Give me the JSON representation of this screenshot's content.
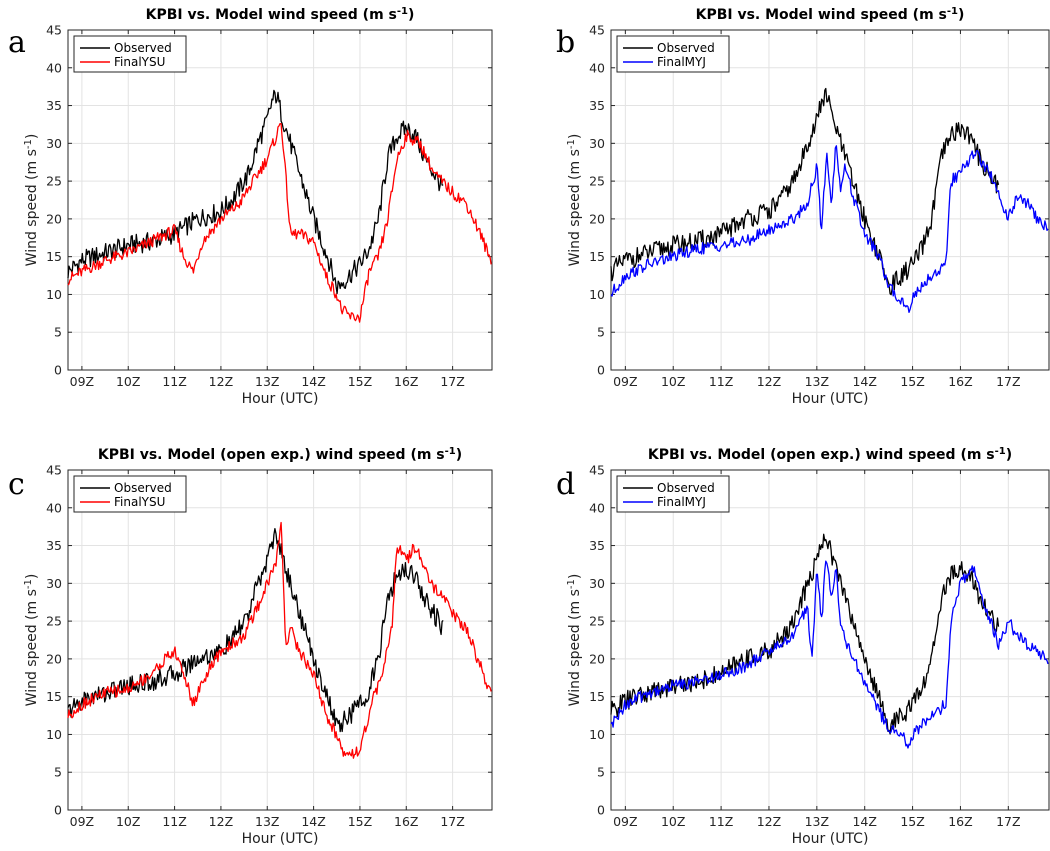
{
  "chart_data": [
    {
      "type": "line",
      "panel_label": "a",
      "title": "KPBI vs. Model wind speed (m s",
      "title_superscript": "-1",
      "title_suffix": ")",
      "xlabel": "Hour (UTC)",
      "ylabel": "Wind speed (m s",
      "ylabel_superscript": "-1",
      "ylabel_suffix": ")",
      "x_tick_labels": [
        "09Z",
        "10Z",
        "11Z",
        "12Z",
        "13Z",
        "14Z",
        "15Z",
        "16Z",
        "17Z"
      ],
      "x_tick_hours": [
        9,
        10,
        11,
        12,
        13,
        14,
        15,
        16,
        17
      ],
      "xlim": [
        8.7,
        17.85
      ],
      "ylim": [
        0,
        45
      ],
      "y_ticks": [
        0,
        5,
        10,
        15,
        20,
        25,
        30,
        35,
        40,
        45
      ],
      "grid": true,
      "legend_position": "top-left",
      "series": [
        {
          "name": "Observed",
          "color": "#000000",
          "x": [
            8.7,
            9.0,
            9.5,
            10.0,
            10.5,
            11.0,
            11.5,
            12.0,
            12.3,
            12.6,
            12.8,
            13.0,
            13.1,
            13.2,
            13.3,
            13.5,
            13.7,
            14.0,
            14.3,
            14.5,
            14.7,
            15.0,
            15.2,
            15.4,
            15.6,
            15.8,
            16.0,
            16.2,
            16.4,
            16.6,
            16.8
          ],
          "y": [
            13,
            14.5,
            15.5,
            16.5,
            17,
            18,
            20,
            21,
            23,
            26,
            30,
            33,
            35.5,
            36.5,
            34,
            30,
            26,
            20,
            15,
            11,
            12,
            14,
            16,
            20,
            28,
            31,
            32,
            31,
            28,
            26,
            24
          ]
        },
        {
          "name": "FinalYSU",
          "color": "#ff0000",
          "x": [
            8.7,
            9.0,
            9.5,
            10.0,
            10.5,
            11.0,
            11.2,
            11.4,
            11.6,
            12.0,
            12.4,
            12.8,
            13.0,
            13.2,
            13.3,
            13.5,
            13.7,
            14.0,
            14.3,
            14.5,
            14.6,
            14.8,
            15.0,
            15.2,
            15.4,
            15.6,
            15.8,
            16.0,
            16.3,
            16.6,
            17.0,
            17.3,
            17.6,
            17.85
          ],
          "y": [
            12,
            13,
            14.5,
            15.5,
            17,
            18.5,
            15,
            13,
            17,
            20,
            22,
            26,
            28,
            31,
            33,
            18,
            18,
            17,
            12,
            10,
            8,
            7,
            7,
            13,
            15,
            20,
            28,
            31,
            30,
            26,
            23.5,
            22,
            18,
            14
          ]
        }
      ]
    },
    {
      "type": "line",
      "panel_label": "b",
      "title": "KPBI vs. Model wind speed (m s",
      "title_superscript": "-1",
      "title_suffix": ")",
      "xlabel": "Hour (UTC)",
      "ylabel": "Wind speed (m s",
      "ylabel_superscript": "-1",
      "ylabel_suffix": ")",
      "x_tick_labels": [
        "09Z",
        "10Z",
        "11Z",
        "12Z",
        "13Z",
        "14Z",
        "15Z",
        "16Z",
        "17Z"
      ],
      "x_tick_hours": [
        9,
        10,
        11,
        12,
        13,
        14,
        15,
        16,
        17
      ],
      "xlim": [
        8.7,
        17.85
      ],
      "ylim": [
        0,
        45
      ],
      "y_ticks": [
        0,
        5,
        10,
        15,
        20,
        25,
        30,
        35,
        40,
        45
      ],
      "grid": true,
      "legend_position": "top-left",
      "series": [
        {
          "name": "Observed",
          "color": "#000000",
          "x": [
            8.7,
            9.0,
            9.5,
            10.0,
            10.5,
            11.0,
            11.5,
            12.0,
            12.3,
            12.6,
            12.8,
            13.0,
            13.1,
            13.2,
            13.3,
            13.5,
            13.7,
            14.0,
            14.3,
            14.5,
            14.7,
            15.0,
            15.2,
            15.4,
            15.6,
            15.8,
            16.0,
            16.2,
            16.4,
            16.6,
            16.8
          ],
          "y": [
            13,
            14.5,
            15.5,
            16.5,
            17,
            18,
            20,
            21,
            23,
            26,
            30,
            33,
            35.5,
            36.5,
            34,
            30,
            26,
            20,
            15,
            11,
            12,
            14,
            16,
            20,
            28,
            31,
            32,
            31,
            28,
            26,
            24
          ]
        },
        {
          "name": "FinalMYJ",
          "color": "#0000ff",
          "x": [
            8.7,
            9.0,
            9.5,
            10.0,
            10.5,
            11.0,
            11.5,
            12.0,
            12.5,
            12.8,
            13.0,
            13.1,
            13.2,
            13.3,
            13.4,
            13.5,
            13.6,
            13.8,
            14.0,
            14.3,
            14.5,
            14.8,
            14.9,
            15.0,
            15.3,
            15.5,
            15.7,
            15.8,
            16.0,
            16.3,
            16.5,
            16.7,
            17.0,
            17.2,
            17.4,
            17.6,
            17.85
          ],
          "y": [
            10,
            12.5,
            14,
            15,
            16,
            16.5,
            17,
            18.5,
            20,
            22,
            27,
            18,
            29,
            22,
            30,
            24,
            27,
            22,
            18,
            15,
            11,
            9,
            8,
            9.5,
            12,
            13,
            14,
            25,
            26,
            29,
            27,
            25,
            20,
            23,
            22,
            20,
            18.5
          ]
        }
      ]
    },
    {
      "type": "line",
      "panel_label": "c",
      "title": "KPBI vs. Model (open exp.) wind speed (m s",
      "title_superscript": "-1",
      "title_suffix": ")",
      "xlabel": "Hour (UTC)",
      "ylabel": "Wind speed (m s",
      "ylabel_superscript": "-1",
      "ylabel_suffix": ")",
      "x_tick_labels": [
        "09Z",
        "10Z",
        "11Z",
        "12Z",
        "13Z",
        "14Z",
        "15Z",
        "16Z",
        "17Z"
      ],
      "x_tick_hours": [
        9,
        10,
        11,
        12,
        13,
        14,
        15,
        16,
        17
      ],
      "xlim": [
        8.7,
        17.85
      ],
      "ylim": [
        0,
        45
      ],
      "y_ticks": [
        0,
        5,
        10,
        15,
        20,
        25,
        30,
        35,
        40,
        45
      ],
      "grid": true,
      "legend_position": "top-left",
      "series": [
        {
          "name": "Observed",
          "color": "#000000",
          "x": [
            8.7,
            9.0,
            9.5,
            10.0,
            10.5,
            11.0,
            11.5,
            12.0,
            12.3,
            12.6,
            12.8,
            13.0,
            13.1,
            13.2,
            13.3,
            13.5,
            13.7,
            14.0,
            14.3,
            14.5,
            14.7,
            15.0,
            15.2,
            15.4,
            15.6,
            15.8,
            16.0,
            16.2,
            16.4,
            16.6,
            16.8
          ],
          "y": [
            13,
            14.5,
            15.5,
            16.5,
            17,
            18,
            20,
            21,
            23,
            26,
            30,
            33,
            35.5,
            36.5,
            34,
            30,
            26,
            20,
            15,
            11,
            12,
            14,
            16,
            20,
            28,
            31,
            32,
            31,
            28,
            26,
            24
          ]
        },
        {
          "name": "FinalYSU",
          "color": "#ff0000",
          "x": [
            8.7,
            9.0,
            9.5,
            10.0,
            10.5,
            10.8,
            11.0,
            11.2,
            11.4,
            11.6,
            12.0,
            12.5,
            12.8,
            13.0,
            13.2,
            13.3,
            13.4,
            13.5,
            13.7,
            14.0,
            14.3,
            14.5,
            14.6,
            14.8,
            15.0,
            15.3,
            15.5,
            15.7,
            15.8,
            16.0,
            16.2,
            16.5,
            16.8,
            17.0,
            17.3,
            17.6,
            17.85
          ],
          "y": [
            12.5,
            14,
            15.5,
            16,
            18,
            20,
            21,
            18,
            14,
            17,
            21,
            23,
            27,
            30,
            33,
            38,
            22,
            24,
            21,
            18,
            12,
            10,
            8,
            7.5,
            8,
            15,
            18,
            25,
            35,
            33,
            35,
            30,
            28,
            26,
            24,
            19,
            15
          ]
        }
      ]
    },
    {
      "type": "line",
      "panel_label": "d",
      "title": "KPBI vs. Model (open exp.) wind speed (m s",
      "title_superscript": "-1",
      "title_suffix": ")",
      "xlabel": "Hour (UTC)",
      "ylabel": "Wind speed (m s",
      "ylabel_superscript": "-1",
      "ylabel_suffix": ")",
      "x_tick_labels": [
        "09Z",
        "10Z",
        "11Z",
        "12Z",
        "13Z",
        "14Z",
        "15Z",
        "16Z",
        "17Z"
      ],
      "x_tick_hours": [
        9,
        10,
        11,
        12,
        13,
        14,
        15,
        16,
        17
      ],
      "xlim": [
        8.7,
        17.85
      ],
      "ylim": [
        0,
        45
      ],
      "y_ticks": [
        0,
        5,
        10,
        15,
        20,
        25,
        30,
        35,
        40,
        45
      ],
      "grid": true,
      "legend_position": "top-left",
      "series": [
        {
          "name": "Observed",
          "color": "#000000",
          "x": [
            8.7,
            9.0,
            9.5,
            10.0,
            10.5,
            11.0,
            11.5,
            12.0,
            12.3,
            12.6,
            12.8,
            13.0,
            13.1,
            13.2,
            13.3,
            13.5,
            13.7,
            14.0,
            14.3,
            14.5,
            14.7,
            15.0,
            15.2,
            15.4,
            15.6,
            15.8,
            16.0,
            16.2,
            16.4,
            16.6,
            16.8
          ],
          "y": [
            13,
            14.5,
            15.5,
            16.5,
            17,
            18,
            20,
            21,
            23,
            26,
            30,
            33,
            35.5,
            36.5,
            34,
            30,
            26,
            20,
            15,
            11,
            12,
            14,
            16,
            20,
            28,
            31,
            32,
            31,
            28,
            26,
            24
          ]
        },
        {
          "name": "FinalMYJ",
          "color": "#0000ff",
          "x": [
            8.7,
            9.0,
            9.5,
            10.0,
            10.5,
            11.0,
            11.5,
            12.0,
            12.5,
            12.8,
            12.9,
            13.0,
            13.1,
            13.2,
            13.3,
            13.4,
            13.5,
            13.7,
            14.0,
            14.3,
            14.5,
            14.8,
            14.9,
            15.0,
            15.3,
            15.5,
            15.7,
            15.8,
            16.0,
            16.3,
            16.5,
            16.8,
            17.0,
            17.2,
            17.4,
            17.6,
            17.85
          ],
          "y": [
            11,
            14,
            15.5,
            16.5,
            17,
            18,
            19,
            21,
            23,
            27,
            20,
            32,
            25,
            34,
            28,
            32,
            24,
            21,
            17,
            13,
            11,
            10,
            8.5,
            10,
            12,
            13,
            14,
            25,
            30,
            32,
            27,
            22,
            25,
            23,
            22,
            21,
            20
          ]
        }
      ]
    }
  ]
}
